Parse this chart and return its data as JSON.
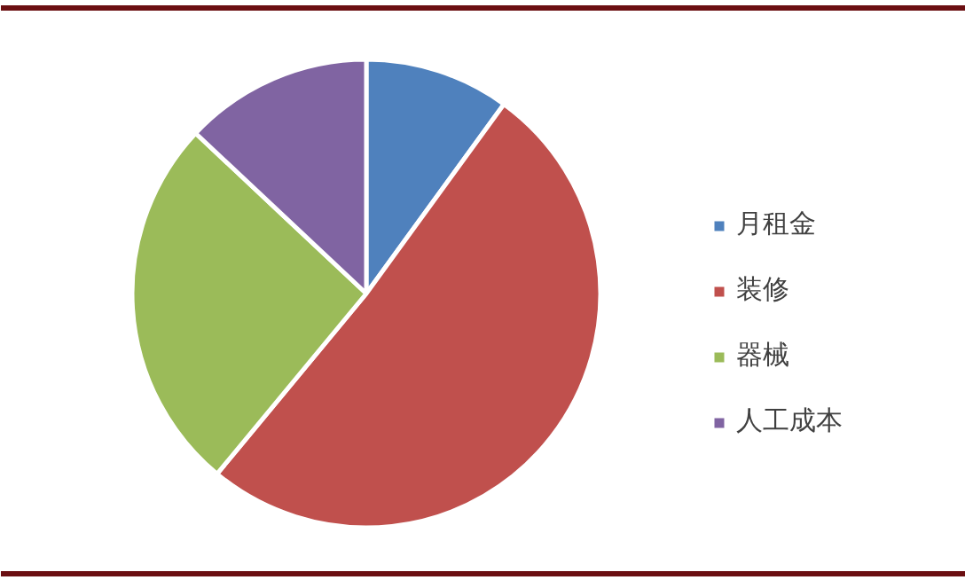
{
  "chart_data": {
    "type": "pie",
    "categories": [
      "月租金",
      "装修",
      "器械",
      "人工成本"
    ],
    "values": [
      10,
      51,
      26,
      13
    ],
    "colors": [
      "#4f81bd",
      "#c0504d",
      "#9bbb59",
      "#8064a2"
    ],
    "legend": "right"
  }
}
